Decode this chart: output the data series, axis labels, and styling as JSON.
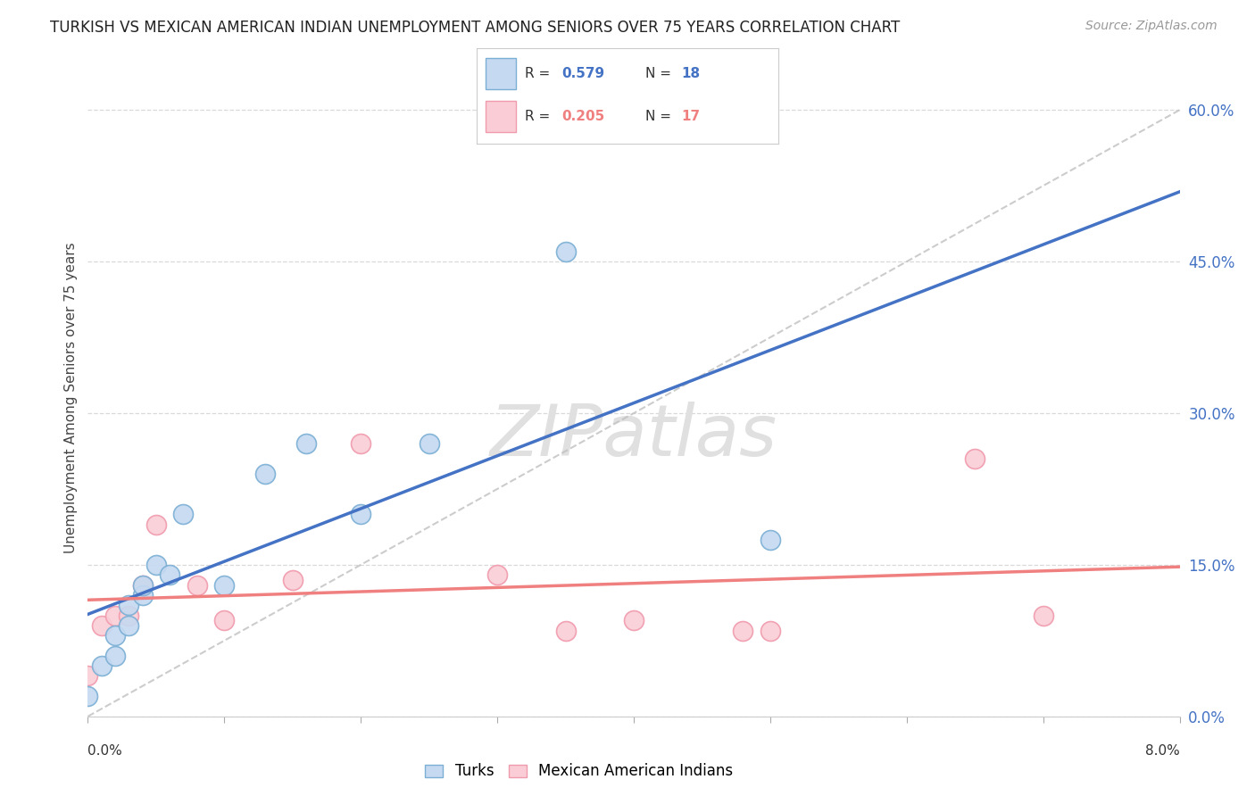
{
  "title": "TURKISH VS MEXICAN AMERICAN INDIAN UNEMPLOYMENT AMONG SENIORS OVER 75 YEARS CORRELATION CHART",
  "source": "Source: ZipAtlas.com",
  "ylabel": "Unemployment Among Seniors over 75 years",
  "turks_R": "0.579",
  "turks_N": "18",
  "mexican_R": "0.205",
  "mexican_N": "17",
  "turks_face_color": "#C5D9F1",
  "turks_edge_color": "#7BAFD4",
  "mexican_face_color": "#FACDD6",
  "mexican_edge_color": "#F09AAD",
  "turks_line_color": "#4472C4",
  "mexican_line_color": "#F08080",
  "dashed_line_color": "#C0C0C0",
  "watermark_color": "#E8E8E8",
  "right_tick_color": "#4472C4",
  "grid_color": "#D9D9D9",
  "turks_x": [
    0.0,
    0.001,
    0.002,
    0.002,
    0.003,
    0.003,
    0.004,
    0.004,
    0.005,
    0.006,
    0.007,
    0.01,
    0.013,
    0.016,
    0.02,
    0.025,
    0.035,
    0.05
  ],
  "turks_y": [
    0.02,
    0.05,
    0.06,
    0.08,
    0.09,
    0.11,
    0.12,
    0.13,
    0.15,
    0.14,
    0.2,
    0.13,
    0.24,
    0.27,
    0.2,
    0.27,
    0.46,
    0.175
  ],
  "mexican_x": [
    0.0,
    0.001,
    0.002,
    0.003,
    0.004,
    0.005,
    0.008,
    0.01,
    0.015,
    0.02,
    0.03,
    0.035,
    0.04,
    0.048,
    0.05,
    0.065,
    0.07
  ],
  "mexican_y": [
    0.04,
    0.09,
    0.1,
    0.1,
    0.13,
    0.19,
    0.13,
    0.095,
    0.135,
    0.27,
    0.14,
    0.085,
    0.095,
    0.085,
    0.085,
    0.255,
    0.1
  ],
  "xlim": [
    0.0,
    0.08
  ],
  "ylim": [
    0.0,
    0.63
  ],
  "right_yticks": [
    0.0,
    0.15,
    0.3,
    0.45,
    0.6
  ],
  "right_ytick_labels": [
    "0.0%",
    "15.0%",
    "30.0%",
    "45.0%",
    "60.0%"
  ],
  "xtick_vals": [
    0.0,
    0.01,
    0.02,
    0.03,
    0.04,
    0.05,
    0.06,
    0.07,
    0.08
  ],
  "background_color": "#FFFFFF"
}
